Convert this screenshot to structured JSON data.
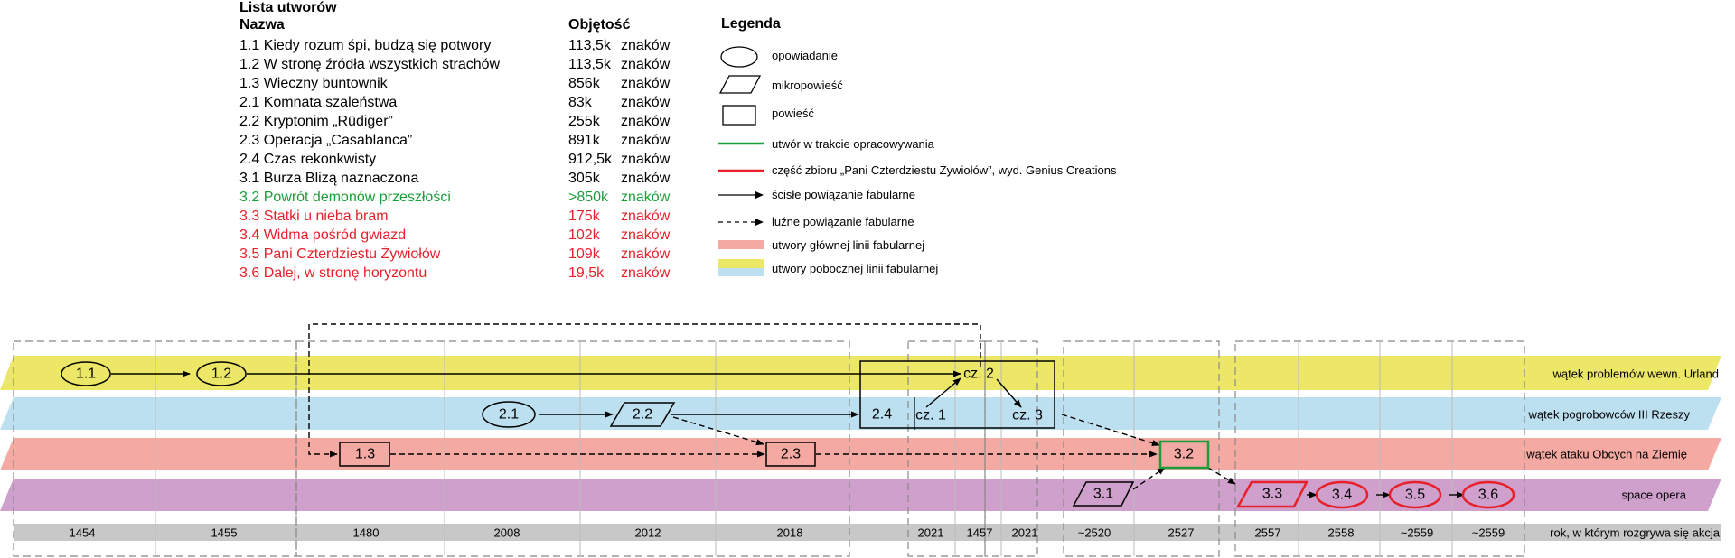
{
  "works_list": {
    "title": "Lista utworów",
    "col_name": "Nazwa",
    "col_volume": "Objętość",
    "rows": [
      {
        "name": "1.1 Kiedy rozum śpi, budzą się potwory",
        "size": "113,5k",
        "unit": "znaków",
        "color": "#000000"
      },
      {
        "name": "1.2 W stronę źródła wszystkich strachów",
        "size": "113,5k",
        "unit": "znaków",
        "color": "#000000"
      },
      {
        "name": "1.3 Wieczny buntownik",
        "size": "856k",
        "unit": "znaków",
        "color": "#000000"
      },
      {
        "name": "2.1 Komnata szaleństwa",
        "size": "83k",
        "unit": "znaków",
        "color": "#000000"
      },
      {
        "name": "2.2 Kryptonim „Rüdiger”",
        "size": "255k",
        "unit": "znaków",
        "color": "#000000"
      },
      {
        "name": "2.3 Operacja „Casablanca”",
        "size": "891k",
        "unit": "znaków",
        "color": "#000000"
      },
      {
        "name": "2.4 Czas rekonkwisty",
        "size": "912,5k",
        "unit": "znaków",
        "color": "#000000"
      },
      {
        "name": "3.1 Burza Blizą naznaczona",
        "size": "305k",
        "unit": "znaków",
        "color": "#000000"
      },
      {
        "name": "3.2 Powrót demonów przeszłości",
        "size": ">850k",
        "unit": "znaków",
        "color": "#1a9e3a"
      },
      {
        "name": "3.3 Statki u nieba bram",
        "size": "175k",
        "unit": "znaków",
        "color": "#e8202a"
      },
      {
        "name": "3.4 Widma pośród gwiazd",
        "size": "102k",
        "unit": "znaków",
        "color": "#e8202a"
      },
      {
        "name": "3.5 Pani Czterdziestu Żywiołów",
        "size": "109k",
        "unit": "znaków",
        "color": "#e8202a"
      },
      {
        "name": "3.6 Dalej, w stronę horyzontu",
        "size": "19,5k",
        "unit": "znaków",
        "color": "#e8202a"
      }
    ]
  },
  "legend": {
    "title": "Legenda",
    "story": "opowiadanie",
    "micro": "mikropowieść",
    "novel": "powieść",
    "in_progress": "utwór w trakcie opracowywania",
    "collection": "część zbioru „Pani Czterdziestu Żywiołów”, wyd. Genius Creations",
    "strict": "ścisłe powiązanie fabularne",
    "loose": "luźne powiązanie fabularne",
    "main_line": "utwory głównej linii fabularnej",
    "side_line": "utwory pobocznej linii fabularnej"
  },
  "colors": {
    "yellow": "#ece766",
    "blue": "#bde0f0",
    "salmon": "#f4aaa2",
    "purple": "#cfa0cc",
    "gray": "#c8c8c8",
    "green": "#1a9e3a",
    "red": "#e8202a"
  },
  "threads": [
    {
      "label": "wątek problemów wewn. Urland",
      "color": "yellow"
    },
    {
      "label": "wątek pogrobowców III Rzeszy",
      "color": "blue"
    },
    {
      "label": "wątek ataku Obcych na Ziemię",
      "color": "salmon"
    },
    {
      "label": "space opera",
      "color": "purple"
    }
  ],
  "year_axis": {
    "caption": "rok, w którym rozgrywa się akcja",
    "years": [
      "1454",
      "1455",
      "1480",
      "2008",
      "2012",
      "2018",
      "2021",
      "1457",
      "2021",
      "~2520",
      "2527",
      "2557",
      "2558",
      "~2559",
      "~2559"
    ]
  },
  "nodes": {
    "n11": "1.1",
    "n12": "1.2",
    "n13": "1.3",
    "n21": "2.1",
    "n22": "2.2",
    "n23": "2.3",
    "n24": "2.4",
    "cz1": "cz. 1",
    "cz2": "cz. 2",
    "cz3": "cz. 3",
    "n31": "3.1",
    "n32": "3.2",
    "n33": "3.3",
    "n34": "3.4",
    "n35": "3.5",
    "n36": "3.6"
  }
}
